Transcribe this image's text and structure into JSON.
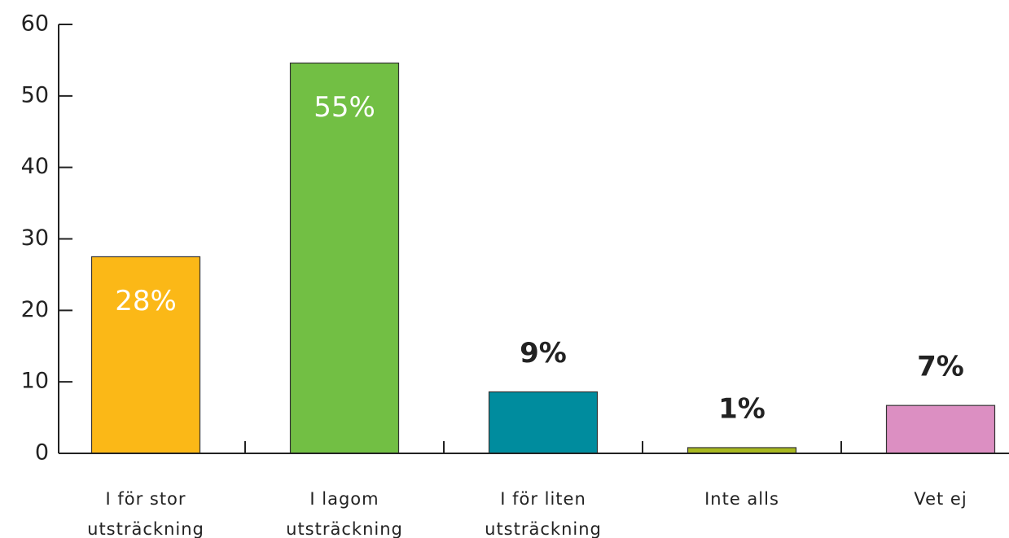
{
  "chart_data": {
    "type": "bar",
    "categories": [
      "I för stor utsträckning",
      "I lagom utsträckning",
      "I för liten utsträckning",
      "Inte alls",
      "Vet ej"
    ],
    "values": [
      27.5,
      54.6,
      8.6,
      0.8,
      6.7
    ],
    "value_labels": [
      "28%",
      "55%",
      "9%",
      "1%",
      "7%"
    ],
    "colors": [
      "#fbb817",
      "#72bf44",
      "#008c9e",
      "#a8b820",
      "#dc8fc2"
    ],
    "ylim": [
      0,
      60
    ],
    "yticks": [
      0,
      10,
      20,
      30,
      40,
      50,
      60
    ],
    "grid": false
  }
}
